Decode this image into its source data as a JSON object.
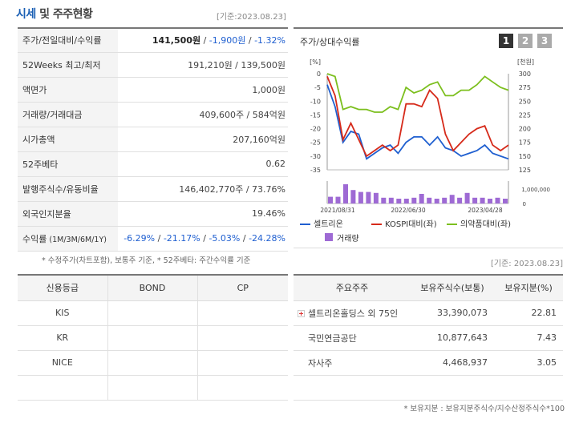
{
  "header": {
    "title_accent": "시세",
    "title_rest": " 및 주주현황",
    "date": "[기준:2023.08.23]"
  },
  "info": {
    "rows": [
      {
        "label": "주가/전일대비/수익률",
        "price": "141,500원",
        "change": "-1,900원",
        "rate": "-1.32%"
      },
      {
        "label": "52Weeks 최고/최저",
        "value": "191,210원 / 139,500원"
      },
      {
        "label": "액면가",
        "value": "1,000원"
      },
      {
        "label": "거래량/거래대금",
        "value": "409,600주 / 584억원"
      },
      {
        "label": "시가총액",
        "value": "207,160억원"
      },
      {
        "label": "52주베타",
        "value": "0.62"
      },
      {
        "label": "발행주식수/유동비율",
        "value": "146,402,770주 / 73.76%"
      },
      {
        "label": "외국인지분율",
        "value": "19.46%"
      },
      {
        "label": "수익률",
        "label_sub": " (1M/3M/6M/1Y)",
        "r1": "-6.29%",
        "r2": "-21.17%",
        "r3": "-5.03%",
        "r4": "-24.28%"
      }
    ],
    "note": "* 수정주가(차트포함), 보통주 기준, * 52주베타: 주간수익률 기준"
  },
  "chart_panel": {
    "title": "주가/상대수익률",
    "pages": [
      "1",
      "2",
      "3"
    ]
  },
  "chart_data": {
    "type": "line",
    "title": "주가/상대수익률",
    "left_axis_label": "[%]",
    "right_axis_label": "[천원]",
    "volume_axis_label": "1,000,000",
    "volume_axis_zero": "0",
    "left_ticks": [
      "0",
      "-5",
      "-10",
      "-15",
      "-20",
      "-25",
      "-30",
      "-35"
    ],
    "left_range": [
      -35,
      0
    ],
    "right_ticks": [
      "300",
      "275",
      "250",
      "225",
      "200",
      "175",
      "150",
      "125"
    ],
    "right_range": [
      125,
      300
    ],
    "x_labels": [
      "2021/08/31",
      "2022/06/30",
      "2023/04/28"
    ],
    "series": [
      {
        "name": "셀트리온",
        "color": "#1f5fd0",
        "values": [
          -4,
          -12,
          -25,
          -21,
          -22,
          -31,
          -29,
          -27,
          -26,
          -29,
          -25,
          -23,
          -23,
          -26,
          -23,
          -27,
          -28,
          -30,
          -29,
          -28,
          -26,
          -29,
          -30,
          -31
        ]
      },
      {
        "name": "KOSPI대비(좌)",
        "color": "#d62a1a",
        "values": [
          -1,
          -8,
          -24,
          -18,
          -24,
          -30,
          -28,
          -26,
          -28,
          -26,
          -11,
          -11,
          -12,
          -6,
          -9,
          -22,
          -28,
          -25,
          -22,
          -20,
          -19,
          -26,
          -28,
          -26
        ]
      },
      {
        "name": "의약품대비(좌)",
        "color": "#7cbf1e",
        "values": [
          0,
          -1,
          -13,
          -12,
          -13,
          -13,
          -14,
          -14,
          -12,
          -13,
          -5,
          -7,
          -6,
          -4,
          -3,
          -8,
          -8,
          -6,
          -6,
          -4,
          -1,
          -3,
          -5,
          -6
        ]
      }
    ],
    "volume": {
      "name": "거래량",
      "color": "#9e6ad4",
      "values": [
        0.35,
        0.35,
        1.0,
        0.7,
        0.6,
        0.6,
        0.55,
        0.3,
        0.3,
        0.25,
        0.25,
        0.3,
        0.5,
        0.3,
        0.25,
        0.3,
        0.45,
        0.3,
        0.55,
        0.3,
        0.3,
        0.25,
        0.3,
        0.25
      ]
    }
  },
  "date_mid": "[기준: 2023.08.23]",
  "credit": {
    "headers": [
      "신용등급",
      "BOND",
      "CP"
    ],
    "rows": [
      [
        "KIS",
        "",
        ""
      ],
      [
        "KR",
        "",
        ""
      ],
      [
        "NICE",
        "",
        ""
      ],
      [
        "",
        "",
        ""
      ]
    ]
  },
  "holders": {
    "headers": [
      "주요주주",
      "보유주식수(보통)",
      "보유지분(%)"
    ],
    "rows": [
      {
        "name": "셀트리온홀딩스 외 75인",
        "shares": "33,390,073",
        "pct": "22.81",
        "expand": true
      },
      {
        "name": "국민연금공단",
        "shares": "10,877,643",
        "pct": "7.43"
      },
      {
        "name": "자사주",
        "shares": "4,468,937",
        "pct": "3.05"
      },
      {
        "name": "",
        "shares": "",
        "pct": ""
      }
    ],
    "note": "* 보유지분 : 보유지분주식수/지수산정주식수*100"
  },
  "colors": {
    "accent": "#1a5fb4",
    "negative": "#1f5fd0"
  }
}
